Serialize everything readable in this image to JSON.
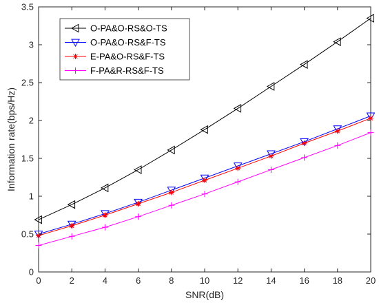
{
  "chart_data": {
    "type": "line",
    "title": "",
    "xlabel": "SNR(dB)",
    "ylabel": "Information rate(bps/Hz)",
    "xlim": [
      0,
      20
    ],
    "ylim": [
      0,
      3.5
    ],
    "x": [
      0,
      2,
      4,
      6,
      8,
      10,
      12,
      14,
      16,
      18,
      20
    ],
    "xticks": [
      "0",
      "2",
      "4",
      "6",
      "8",
      "10",
      "12",
      "14",
      "16",
      "18",
      "20"
    ],
    "yticks": [
      "0",
      "0.5",
      "1",
      "1.5",
      "2",
      "2.5",
      "3",
      "3.5"
    ],
    "grid": false,
    "legend_position": "top-left",
    "series": [
      {
        "name": "O-PA&O-RS&O-TS",
        "marker": "triangle-left",
        "color": "#000000",
        "values": [
          0.69,
          0.89,
          1.11,
          1.35,
          1.61,
          1.88,
          2.16,
          2.45,
          2.74,
          3.04,
          3.35
        ]
      },
      {
        "name": "O-PA&O-RS&F-TS",
        "marker": "triangle-down",
        "color": "#0000ff",
        "values": [
          0.5,
          0.63,
          0.77,
          0.92,
          1.08,
          1.24,
          1.4,
          1.56,
          1.72,
          1.89,
          2.06
        ]
      },
      {
        "name": "E-PA&O-RS&F-TS",
        "marker": "asterisk",
        "color": "#ff0000",
        "values": [
          0.48,
          0.61,
          0.75,
          0.9,
          1.05,
          1.21,
          1.37,
          1.53,
          1.7,
          1.86,
          2.03
        ]
      },
      {
        "name": "F-PA&R-RS&F-TS",
        "marker": "plus",
        "color": "#ff00ff",
        "values": [
          0.35,
          0.47,
          0.59,
          0.73,
          0.88,
          1.03,
          1.19,
          1.35,
          1.51,
          1.67,
          1.84
        ]
      }
    ]
  }
}
